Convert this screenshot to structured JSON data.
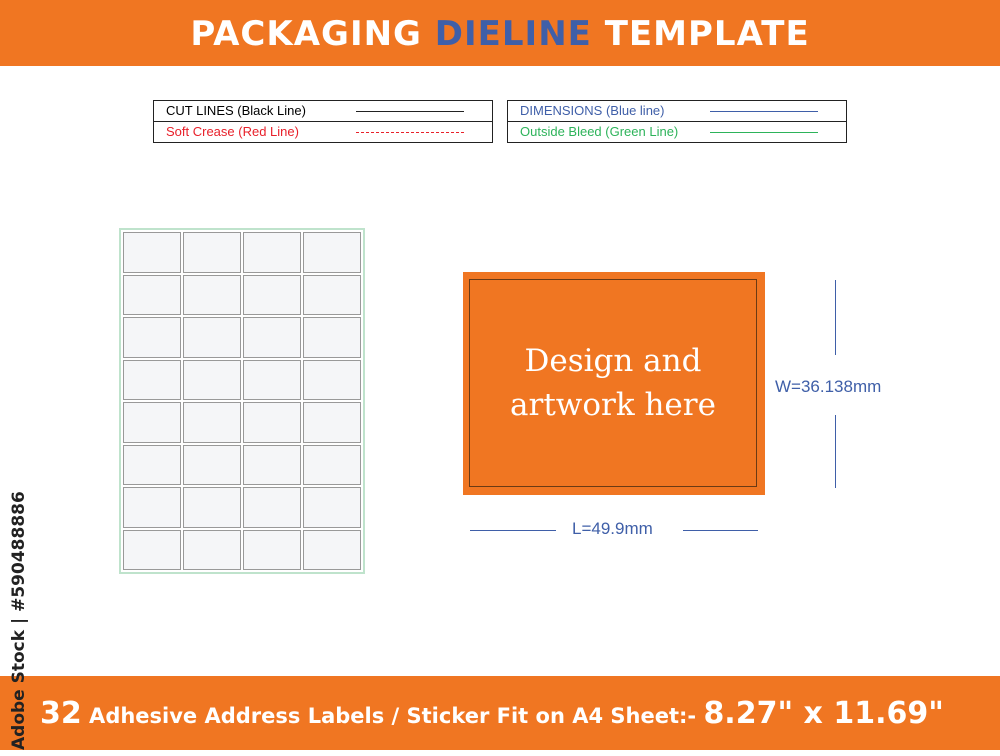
{
  "header": {
    "title_part1": "PACKAGING ",
    "title_highlight": "DIELINE",
    "title_part2": " TEMPLATE"
  },
  "legend": {
    "cut_lines": "CUT LINES (Black Line)",
    "soft_crease": "Soft Crease (Red Line)",
    "dimensions": "DIMENSIONS (Blue line)",
    "outside_bleed": "Outside Bleed (Green Line)"
  },
  "colors": {
    "brand_orange": "#f07622",
    "cut": "#222222",
    "crease": "#e8202a",
    "dimension": "#3f5fa8",
    "bleed": "#2db35a"
  },
  "sheet": {
    "columns": 4,
    "rows": 8
  },
  "artwork": {
    "line1": "Design and",
    "line2": "artwork here"
  },
  "dimensions": {
    "width": "W=36.138mm",
    "length": "L=49.9mm"
  },
  "footer": {
    "count": "32",
    "text": " Adhesive Address Labels / Sticker Fit on A4 Sheet:- ",
    "size": "8.27\" x 11.69\""
  },
  "watermark": {
    "credit": "Adobe Stock | #590488886"
  }
}
